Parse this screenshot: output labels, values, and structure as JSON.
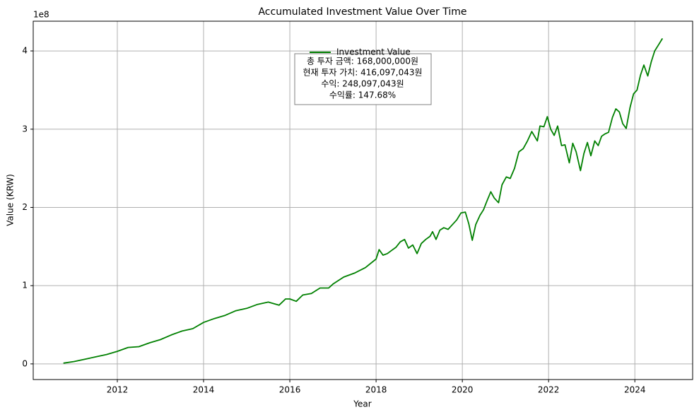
{
  "chart_data": {
    "type": "line",
    "title": "Accumulated Investment Value Over Time",
    "xlabel": "Year",
    "ylabel": "Value (KRW)",
    "y_offset_label": "1e8",
    "xlim": [
      2010.05,
      2025.34
    ],
    "ylim": [
      -0.2,
      4.38
    ],
    "xticks": [
      2012,
      2014,
      2016,
      2018,
      2020,
      2022,
      2024
    ],
    "yticks": [
      0,
      1,
      2,
      3,
      4
    ],
    "grid": true,
    "legend": "upper center",
    "annotation": [
      "총 투자 금액: 168,000,000원",
      "현재 투자 가치: 416,097,043원",
      "수익: 248,097,043원",
      "수익률: 147.68%"
    ],
    "series": [
      {
        "name": "Investment Value",
        "color": "#008000",
        "x": [
          2010.75,
          2011.0,
          2011.25,
          2011.5,
          2011.75,
          2012.0,
          2012.25,
          2012.5,
          2012.75,
          2013.0,
          2013.25,
          2013.5,
          2013.75,
          2014.0,
          2014.25,
          2014.5,
          2014.75,
          2015.0,
          2015.25,
          2015.5,
          2015.75,
          2015.9,
          2016.0,
          2016.15,
          2016.3,
          2016.5,
          2016.7,
          2016.9,
          2017.0,
          2017.25,
          2017.5,
          2017.75,
          2018.0,
          2018.07,
          2018.16,
          2018.26,
          2018.36,
          2018.46,
          2018.56,
          2018.66,
          2018.75,
          2018.85,
          2018.95,
          2019.05,
          2019.15,
          2019.25,
          2019.31,
          2019.39,
          2019.48,
          2019.57,
          2019.67,
          2019.77,
          2019.87,
          2019.97,
          2020.07,
          2020.15,
          2020.23,
          2020.31,
          2020.41,
          2020.49,
          2020.57,
          2020.66,
          2020.74,
          2020.84,
          2020.92,
          2021.02,
          2021.11,
          2021.21,
          2021.31,
          2021.41,
          2021.51,
          2021.61,
          2021.74,
          2021.8,
          2021.89,
          2021.97,
          2022.05,
          2022.13,
          2022.21,
          2022.3,
          2022.38,
          2022.48,
          2022.56,
          2022.64,
          2022.74,
          2022.82,
          2022.9,
          2022.98,
          2023.07,
          2023.15,
          2023.23,
          2023.31,
          2023.39,
          2023.48,
          2023.56,
          2023.64,
          2023.72,
          2023.8,
          2023.89,
          2023.97,
          2024.05,
          2024.13,
          2024.21,
          2024.3,
          2024.38,
          2024.46,
          2024.54,
          2024.64
        ],
        "values": [
          0.01,
          0.03,
          0.06,
          0.09,
          0.12,
          0.16,
          0.21,
          0.22,
          0.27,
          0.31,
          0.37,
          0.42,
          0.45,
          0.53,
          0.58,
          0.62,
          0.68,
          0.71,
          0.76,
          0.79,
          0.75,
          0.83,
          0.83,
          0.8,
          0.88,
          0.9,
          0.97,
          0.97,
          1.02,
          1.11,
          1.16,
          1.23,
          1.34,
          1.46,
          1.39,
          1.41,
          1.45,
          1.49,
          1.56,
          1.59,
          1.48,
          1.52,
          1.41,
          1.54,
          1.59,
          1.63,
          1.69,
          1.59,
          1.71,
          1.74,
          1.72,
          1.78,
          1.84,
          1.93,
          1.94,
          1.79,
          1.58,
          1.78,
          1.9,
          1.97,
          2.08,
          2.2,
          2.12,
          2.06,
          2.29,
          2.39,
          2.37,
          2.5,
          2.71,
          2.75,
          2.85,
          2.97,
          2.85,
          3.04,
          3.03,
          3.16,
          3.0,
          2.92,
          3.04,
          2.79,
          2.8,
          2.57,
          2.82,
          2.71,
          2.47,
          2.69,
          2.83,
          2.66,
          2.85,
          2.79,
          2.91,
          2.94,
          2.96,
          3.15,
          3.26,
          3.22,
          3.07,
          3.01,
          3.28,
          3.45,
          3.5,
          3.69,
          3.82,
          3.68,
          3.86,
          4.0,
          4.07,
          4.16
        ]
      }
    ]
  }
}
